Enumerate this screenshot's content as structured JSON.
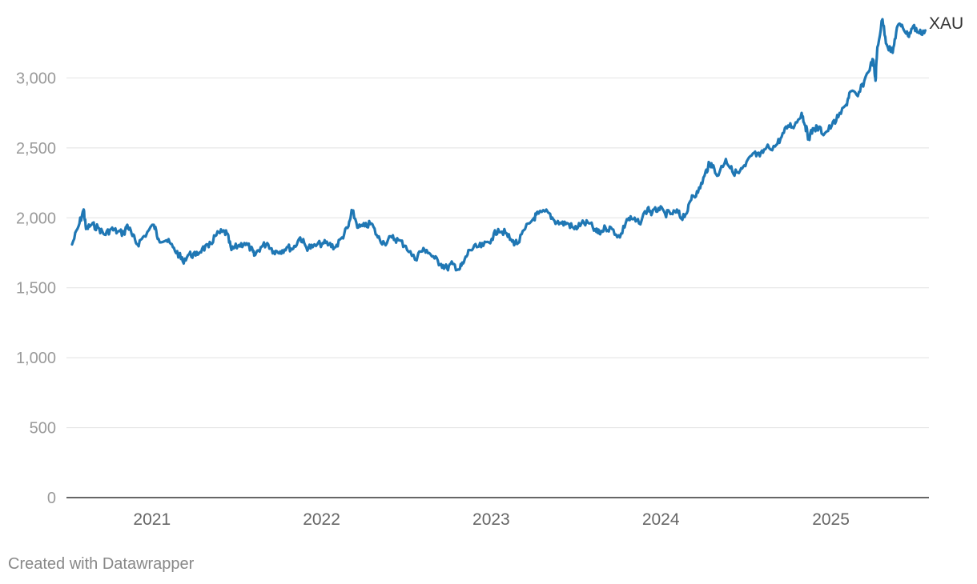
{
  "footer": {
    "credit": "Created with Datawrapper"
  },
  "colors": {
    "line": "#1f77b4",
    "grid": "#e2e2e2",
    "baseline": "#333333"
  },
  "chart_data": {
    "type": "line",
    "title": "",
    "xlabel": "",
    "ylabel": "",
    "grid": true,
    "ylim": [
      0,
      3500
    ],
    "yticks": [
      0,
      500,
      1000,
      1500,
      2000,
      2500,
      3000
    ],
    "ytick_labels": [
      "0",
      "500",
      "1,000",
      "1,500",
      "2,000",
      "2,500",
      "3,000"
    ],
    "xlim": [
      "2020-07-01",
      "2025-07-31"
    ],
    "xticks": [
      "2021-01-01",
      "2022-01-01",
      "2023-01-01",
      "2024-01-01",
      "2025-01-01"
    ],
    "xtick_labels": [
      "2021",
      "2022",
      "2023",
      "2024",
      "2025"
    ],
    "series": [
      {
        "name": "XAU",
        "x": [
          "2020-07-13",
          "2020-07-27",
          "2020-08-07",
          "2020-08-12",
          "2020-08-24",
          "2020-09-07",
          "2020-09-21",
          "2020-10-05",
          "2020-10-19",
          "2020-11-02",
          "2020-11-09",
          "2020-11-20",
          "2020-12-01",
          "2020-12-15",
          "2021-01-05",
          "2021-01-15",
          "2021-02-01",
          "2021-02-15",
          "2021-03-01",
          "2021-03-08",
          "2021-03-22",
          "2021-04-05",
          "2021-04-19",
          "2021-05-03",
          "2021-05-17",
          "2021-06-01",
          "2021-06-11",
          "2021-06-21",
          "2021-07-05",
          "2021-07-19",
          "2021-08-02",
          "2021-08-09",
          "2021-08-23",
          "2021-09-06",
          "2021-09-20",
          "2021-10-04",
          "2021-10-18",
          "2021-11-01",
          "2021-11-16",
          "2021-11-29",
          "2021-12-13",
          "2022-01-03",
          "2022-01-17",
          "2022-01-31",
          "2022-02-14",
          "2022-02-28",
          "2022-03-08",
          "2022-03-21",
          "2022-04-04",
          "2022-04-18",
          "2022-05-02",
          "2022-05-16",
          "2022-06-01",
          "2022-06-15",
          "2022-07-01",
          "2022-07-21",
          "2022-08-01",
          "2022-08-15",
          "2022-09-01",
          "2022-09-15",
          "2022-09-28",
          "2022-10-10",
          "2022-10-24",
          "2022-11-03",
          "2022-11-15",
          "2022-12-01",
          "2022-12-15",
          "2023-01-02",
          "2023-01-16",
          "2023-02-01",
          "2023-02-15",
          "2023-02-28",
          "2023-03-15",
          "2023-04-03",
          "2023-04-13",
          "2023-05-03",
          "2023-05-17",
          "2023-06-01",
          "2023-06-15",
          "2023-06-29",
          "2023-07-14",
          "2023-07-31",
          "2023-08-15",
          "2023-08-21",
          "2023-09-04",
          "2023-09-18",
          "2023-10-05",
          "2023-10-20",
          "2023-11-01",
          "2023-11-15",
          "2023-12-04",
          "2023-12-13",
          "2023-12-27",
          "2024-01-10",
          "2024-01-24",
          "2024-02-07",
          "2024-02-14",
          "2024-02-28",
          "2024-03-08",
          "2024-03-21",
          "2024-04-04",
          "2024-04-12",
          "2024-04-19",
          "2024-05-01",
          "2024-05-20",
          "2024-06-03",
          "2024-06-17",
          "2024-07-01",
          "2024-07-17",
          "2024-08-01",
          "2024-08-15",
          "2024-09-03",
          "2024-09-17",
          "2024-10-01",
          "2024-10-15",
          "2024-10-30",
          "2024-11-07",
          "2024-11-14",
          "2024-11-25",
          "2024-12-06",
          "2024-12-18",
          "2025-01-03",
          "2025-01-17",
          "2025-02-03",
          "2025-02-11",
          "2025-02-28",
          "2025-03-14",
          "2025-03-31",
          "2025-04-03",
          "2025-04-07",
          "2025-04-11",
          "2025-04-22",
          "2025-05-01",
          "2025-05-14",
          "2025-05-23",
          "2025-06-03",
          "2025-06-16",
          "2025-06-27",
          "2025-07-10",
          "2025-07-23"
        ],
        "y": [
          1810,
          1940,
          2060,
          1920,
          1950,
          1930,
          1880,
          1920,
          1900,
          1890,
          1950,
          1870,
          1810,
          1870,
          1950,
          1850,
          1840,
          1790,
          1730,
          1690,
          1740,
          1730,
          1780,
          1790,
          1870,
          1900,
          1890,
          1770,
          1800,
          1820,
          1780,
          1730,
          1790,
          1820,
          1760,
          1760,
          1790,
          1780,
          1860,
          1790,
          1790,
          1820,
          1810,
          1790,
          1860,
          1940,
          2050,
          1930,
          1940,
          1960,
          1860,
          1820,
          1860,
          1840,
          1800,
          1700,
          1760,
          1770,
          1710,
          1670,
          1640,
          1670,
          1630,
          1680,
          1770,
          1790,
          1800,
          1850,
          1920,
          1890,
          1830,
          1820,
          1920,
          2000,
          2030,
          2040,
          1980,
          1960,
          1960,
          1920,
          1960,
          1960,
          1900,
          1890,
          1930,
          1920,
          1860,
          1990,
          1990,
          1960,
          2070,
          2030,
          2070,
          2030,
          2030,
          2040,
          2000,
          2050,
          2160,
          2180,
          2300,
          2370,
          2390,
          2300,
          2420,
          2330,
          2320,
          2370,
          2460,
          2440,
          2500,
          2510,
          2580,
          2660,
          2660,
          2750,
          2660,
          2570,
          2640,
          2640,
          2600,
          2660,
          2720,
          2810,
          2900,
          2870,
          2980,
          3120,
          3100,
          2980,
          3220,
          3420,
          3240,
          3180,
          3360,
          3380,
          3300,
          3370,
          3320,
          3340
        ]
      }
    ]
  }
}
